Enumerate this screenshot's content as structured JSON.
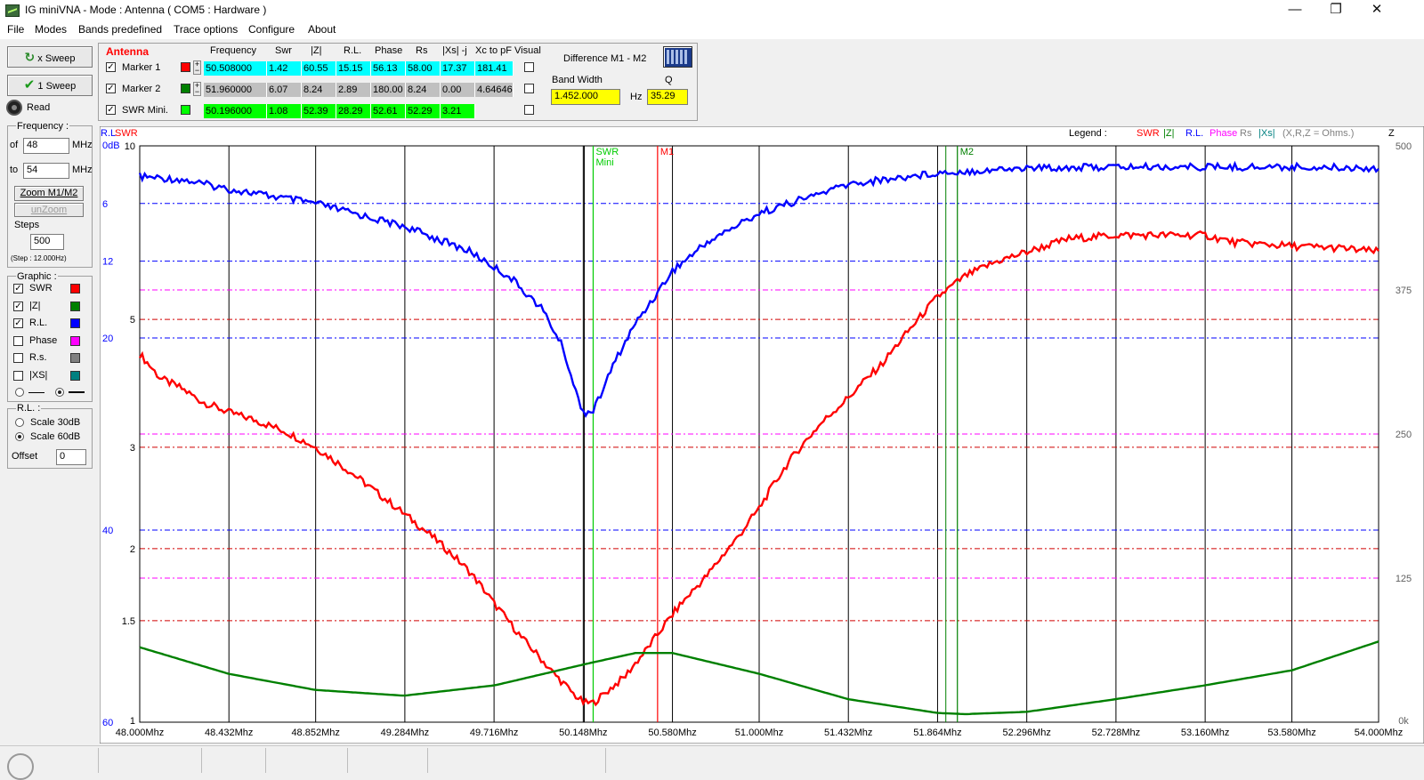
{
  "window": {
    "title": "IG miniVNA - Mode : Antenna ( COM5 :  Hardware )",
    "minimize": "—",
    "restore": "❐",
    "close": "✕"
  },
  "menu": [
    "File",
    "Modes",
    "Bands predefined",
    "Trace options",
    "Configure",
    "About"
  ],
  "sweep": {
    "x_sweep": "x Sweep",
    "one_sweep": "1 Sweep",
    "read": "Read"
  },
  "frequency": {
    "title": "Frequency :",
    "of_label": "of",
    "of_value": "48",
    "to_label": "to",
    "to_value": "54",
    "unit": "MHz",
    "zoom": "Zoom M1/M2",
    "unzoom": "unZoom",
    "steps_label": "Steps",
    "steps_value": "500",
    "step_info": "(Step : 12.000Hz)"
  },
  "graphic": {
    "title": "Graphic :",
    "items": [
      {
        "label": "SWR",
        "checked": true,
        "color": "#ff0000"
      },
      {
        "label": "|Z|",
        "checked": true,
        "color": "#008000"
      },
      {
        "label": "R.L.",
        "checked": true,
        "color": "#0000ff"
      },
      {
        "label": "Phase",
        "checked": false,
        "color": "#ff00ff"
      },
      {
        "label": "R.s.",
        "checked": false,
        "color": "#808080"
      },
      {
        "label": "|XS|",
        "checked": false,
        "color": "#008080"
      }
    ]
  },
  "rl": {
    "title": "R.L. :",
    "scale30": "Scale 30dB",
    "scale60": "Scale 60dB",
    "offset_label": "Offset",
    "offset_value": "0"
  },
  "markers": {
    "section": "Antenna",
    "headers": [
      "Frequency",
      "Swr",
      "|Z|",
      "R.L.",
      "Phase",
      "Rs",
      "|Xs| -j",
      "Xc to pF",
      "Visual"
    ],
    "rows": [
      {
        "label": "Marker 1",
        "color": "#ff0000",
        "bg": "#00ffff",
        "values": [
          "50.508000",
          "1.42",
          "60.55",
          "15.15",
          "56.13",
          "58.00",
          "17.37",
          "181.41"
        ]
      },
      {
        "label": "Marker 2",
        "color": "#008000",
        "bg": "#c0c0c0",
        "values": [
          "51.960000",
          "6.07",
          "8.24",
          "2.89",
          "180.00",
          "8.24",
          "0.00",
          "4.64646"
        ]
      },
      {
        "label": "SWR Mini.",
        "color": "#00ff00",
        "bg": "#00ff00",
        "values": [
          "50.196000",
          "1.08",
          "52.39",
          "28.29",
          "52.61",
          "52.29",
          "3.21",
          ""
        ]
      }
    ]
  },
  "difference": {
    "title": "Difference M1 - M2",
    "bw_label": "Band Width",
    "bw_value": "1.452.000",
    "hz": "Hz",
    "q_label": "Q",
    "q_value": "35.29"
  },
  "legend": {
    "title": "Legend :",
    "items": [
      {
        "label": "SWR",
        "color": "#ff0000"
      },
      {
        "label": "|Z|",
        "color": "#008000"
      },
      {
        "label": "R.L.",
        "color": "#0000ff"
      },
      {
        "label": "Phase",
        "color": "#ff00ff"
      },
      {
        "label": "Rs",
        "color": "#808080"
      },
      {
        "label": "|Xs|",
        "color": "#008080"
      },
      {
        "label": "(X,R,Z = Ohms.)",
        "color": "#808080"
      }
    ]
  },
  "chart_data": {
    "type": "line",
    "x_unit": "Mhz",
    "x_ticks": [
      "48.000Mhz",
      "48.432Mhz",
      "48.852Mhz",
      "49.284Mhz",
      "49.716Mhz",
      "50.148Mhz",
      "50.580Mhz",
      "51.000Mhz",
      "51.432Mhz",
      "51.864Mhz",
      "52.296Mhz",
      "52.728Mhz",
      "53.160Mhz",
      "53.580Mhz",
      "54.000Mhz"
    ],
    "xlim": [
      48.0,
      54.0
    ],
    "rl_axis": {
      "label": "R.L",
      "unit": "dB",
      "ticks": [
        "0dB",
        "6",
        "12",
        "20",
        "40",
        "60"
      ],
      "range": [
        0,
        60
      ]
    },
    "swr_axis": {
      "label": "SWR",
      "ticks": [
        "10",
        "5",
        "3",
        "2",
        "1.5",
        "1"
      ],
      "scale": "log",
      "range": [
        1,
        10
      ]
    },
    "z_axis": {
      "label": "Z",
      "ticks": [
        "500",
        "375",
        "250",
        "125",
        "0k"
      ],
      "range": [
        0,
        500
      ]
    },
    "markers": [
      {
        "label": "SWR",
        "sublabel": "Mini",
        "x": 50.196,
        "color": "#00cc00"
      },
      {
        "label": "M1",
        "x": 50.508,
        "color": "#ff0000"
      },
      {
        "label": "M2",
        "x": 51.96,
        "color": "#008000"
      }
    ],
    "series": [
      {
        "name": "SWR",
        "color": "#ff0000",
        "axis": "swr",
        "x": [
          48.0,
          48.1,
          48.2,
          48.3,
          48.43,
          48.55,
          48.7,
          48.85,
          49.0,
          49.15,
          49.28,
          49.45,
          49.6,
          49.72,
          49.85,
          50.0,
          50.1,
          50.15,
          50.196,
          50.25,
          50.35,
          50.45,
          50.508,
          50.6,
          50.75,
          50.9,
          51.0,
          51.15,
          51.3,
          51.43,
          51.6,
          51.75,
          51.86,
          52.0,
          52.15,
          52.3,
          52.5,
          52.73,
          53.0,
          53.16,
          53.3,
          53.58,
          53.8,
          54.0
        ],
        "y": [
          4.35,
          3.95,
          3.8,
          3.6,
          3.45,
          3.35,
          3.2,
          3.0,
          2.75,
          2.5,
          2.3,
          2.05,
          1.82,
          1.6,
          1.4,
          1.22,
          1.12,
          1.08,
          1.08,
          1.12,
          1.2,
          1.33,
          1.42,
          1.57,
          1.8,
          2.1,
          2.35,
          2.85,
          3.3,
          3.65,
          4.2,
          4.9,
          5.45,
          5.95,
          6.3,
          6.55,
          6.9,
          7.0,
          7.0,
          7.0,
          6.8,
          6.7,
          6.65,
          6.55
        ]
      },
      {
        "name": "|Z|",
        "color": "#008000",
        "axis": "z",
        "x": [
          48.0,
          48.43,
          48.85,
          49.28,
          49.72,
          50.148,
          50.4,
          50.58,
          51.0,
          51.43,
          51.864,
          52.0,
          52.296,
          52.728,
          53.16,
          53.58,
          54.0
        ],
        "y": [
          65,
          42,
          28,
          23,
          32,
          50,
          60,
          60,
          42,
          20,
          8,
          7,
          9,
          20,
          32,
          45,
          70
        ]
      },
      {
        "name": "R.L.",
        "color": "#0000ff",
        "axis": "rl",
        "x": [
          48.0,
          48.2,
          48.432,
          48.852,
          49.284,
          49.6,
          49.8,
          49.95,
          50.05,
          50.11,
          50.15,
          50.2,
          50.3,
          50.4,
          50.5,
          50.58,
          50.75,
          51.0,
          51.432,
          51.864,
          52.296,
          52.728,
          53.16,
          53.58,
          54.0
        ],
        "y": [
          3.2,
          3.5,
          4.5,
          6.0,
          8.4,
          11.0,
          13.8,
          17.0,
          21.0,
          25.5,
          27.8,
          27.5,
          22.5,
          18.5,
          15.5,
          13.0,
          10.0,
          7.0,
          4.0,
          2.8,
          2.3,
          2.2,
          2.2,
          2.2,
          2.3
        ]
      }
    ]
  },
  "status": [
    "",
    "",
    "",
    "",
    "",
    ""
  ]
}
